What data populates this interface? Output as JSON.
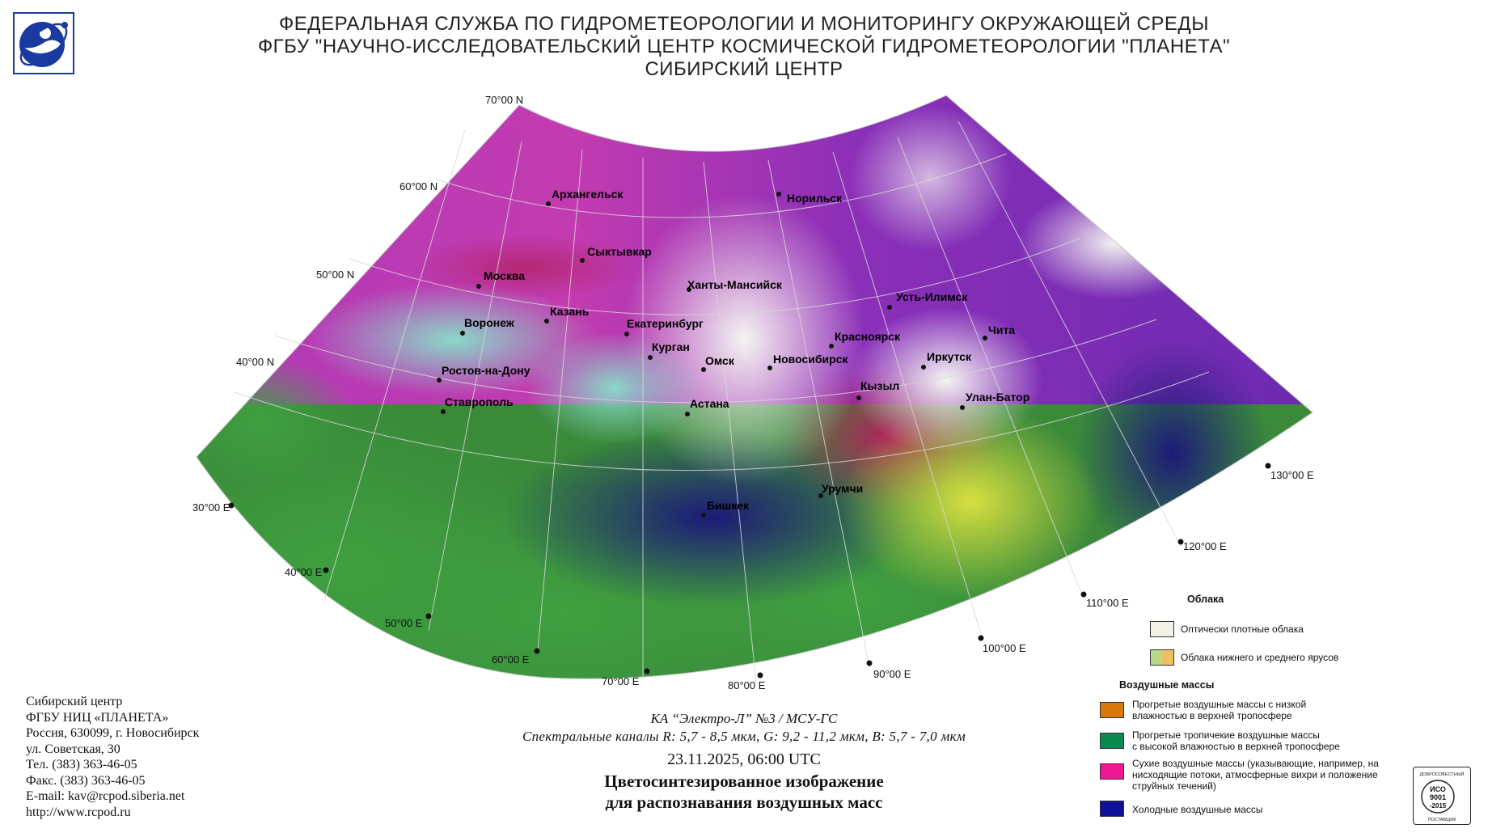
{
  "header": {
    "line1": "ФЕДЕРАЛЬНАЯ СЛУЖБА ПО ГИДРОМЕТЕОРОЛОГИИ И МОНИТОРИНГУ ОКРУЖАЮЩЕЙ СРЕДЫ",
    "line2": "ФГБУ \"НАУЧНО-ИССЛЕДОВАТЕЛЬСКИЙ ЦЕНТР КОСМИЧЕСКОЙ ГИДРОМЕТЕОРОЛОГИИ \"ПЛАНЕТА\"",
    "line3": "СИБИРСКИЙ ЦЕНТР"
  },
  "map": {
    "latitude_labels": [
      "70°00 N",
      "60°00 N",
      "50°00 N",
      "40°00 N"
    ],
    "longitude_labels": [
      "30°00 E",
      "40°00 E",
      "50°00 E",
      "60°00 E",
      "70°00 E",
      "80°00 E",
      "90°00 E",
      "100°00 E",
      "110°00 E",
      "120°00 E",
      "130°00 E"
    ],
    "cities": {
      "arkhangelsk": "Архангельск",
      "norilsk": "Норильск",
      "syktyvkar": "Сыктывкар",
      "moskva": "Москва",
      "khanty": "Ханты-Мансийск",
      "ust_ilimsk": "Усть-Илимск",
      "kazan": "Казань",
      "voronezh": "Воронеж",
      "ekaterinburg": "Екатеринбург",
      "krasnoyarsk": "Красноярск",
      "chita": "Чита",
      "kurgan": "Курган",
      "omsk": "Омск",
      "novosibirsk": "Новосибирск",
      "irkutsk": "Иркутск",
      "rostov": "Ростов-на-Дону",
      "kyzyl": "Кызыл",
      "astana": "Астана",
      "ulanbator": "Улан-Батор",
      "stavropol": "Ставрополь",
      "urumqi": "Урумчи",
      "bishkek": "Бишкек"
    }
  },
  "contact": {
    "l1": "Сибирский центр",
    "l2": "ФГБУ НИЦ «ПЛАНЕТА»",
    "l3": "Россия, 630099, г. Новосибирск",
    "l4": "ул. Советская, 30",
    "l5": "Тел. (383) 363-46-05",
    "l6": "Факс. (383) 363-46-05",
    "l7": "E-mail: kav@rcpod.siberia.net",
    "l8": "http://www.rcpod.ru"
  },
  "info": {
    "satellite": "КА “Электро-Л” №3 / МСУ-ГС",
    "channels": "Спектральные каналы R: 5,7 - 8,5 мкм, G: 9,2 - 11,2 мкм, B: 5,7 - 7,0 мкм",
    "datetime": "23.11.2025, 06:00 UTC",
    "title1": "Цветосинтезированное изображение",
    "title2": "для распознавания воздушных масс"
  },
  "legend": {
    "clouds_head": "Облака",
    "cloud_dense": "Оптически плотные облака",
    "cloud_low": "Облака нижнего и среднего ярусов",
    "air_head": "Воздушные массы",
    "warm_dry_1": "Прогретые воздушные массы с низкой",
    "warm_dry_2": "влажностью в верхней тропосфере",
    "warm_moist_1": "Прогретые тропичекие воздушные массы",
    "warm_moist_2": "с высокой влажностью в верхней тропосфере",
    "dry_1": "Сухие воздушные массы (указывающие, например, на",
    "dry_2": "нисходящие потоки, атмосферные вихри и положение",
    "dry_3": "струйных течений)",
    "cold": "Холодные воздушные массы",
    "colors": {
      "dense": "#f2f2e6",
      "low_a": "#b9d88a",
      "low_b": "#f0c060",
      "warm_dry": "#d8780a",
      "warm_moist": "#0a8a50",
      "dry": "#f01890",
      "cold": "#10109a"
    }
  },
  "iso": {
    "top": "ДОБРОСОВЕСТНЫЙ",
    "l1": "ИСО",
    "l2": "9001",
    "l3": "-2015",
    "bottom": "ПОСТАВЩИК"
  }
}
